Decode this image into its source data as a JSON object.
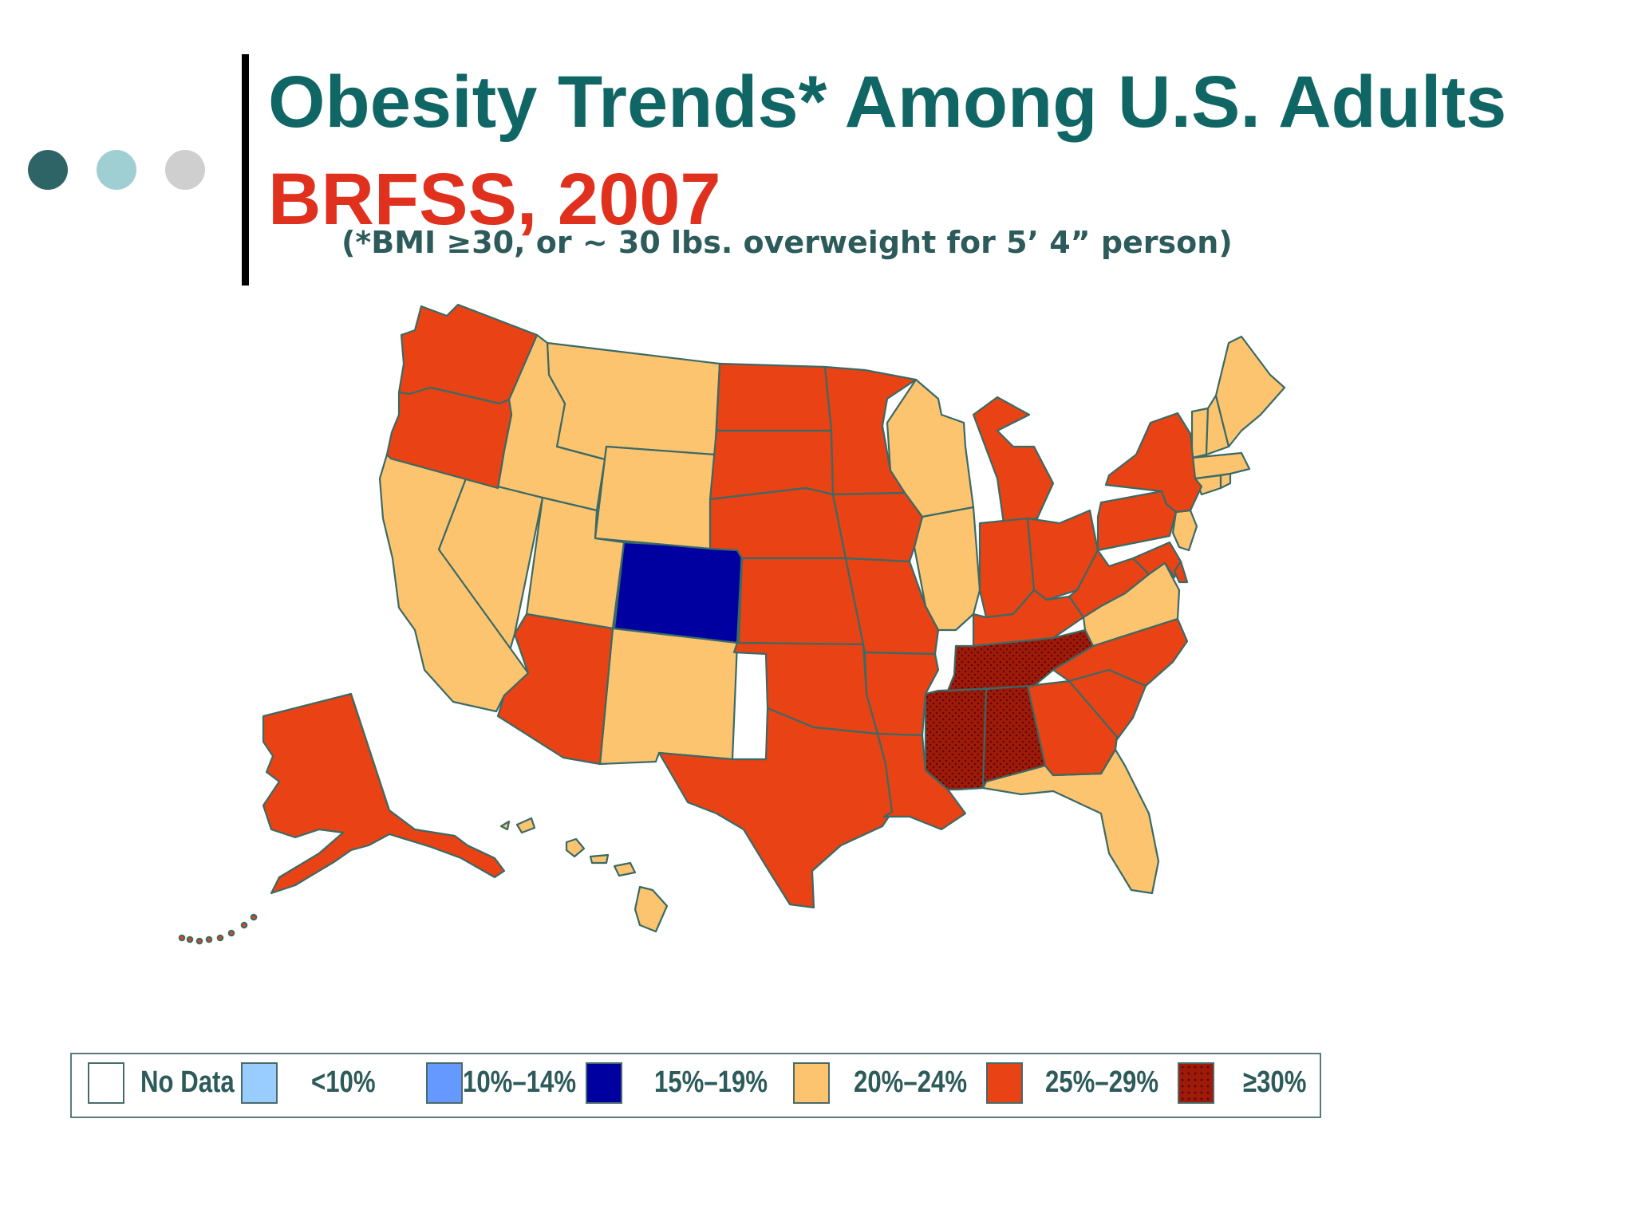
{
  "title": "Obesity Trends* Among U.S. Adults",
  "subtitle": "BRFSS, 2007",
  "footnote": "(*BMI ≥30, or ~ 30 lbs. overweight for 5’ 4” person)",
  "colors": {
    "title": "#0f6664",
    "subtitle": "#e0301e",
    "bullet_dots": [
      "#2f6466",
      "#9fcfd2",
      "#cfcfcf"
    ],
    "no_data": "#ffffff",
    "lt10": "#99ccff",
    "10_14": "#6699ff",
    "15_19": "#0000a0",
    "20_24": "#fdc470",
    "25_29": "#e94214",
    "gte30": "#a01a0a"
  },
  "legend": [
    {
      "label": "No Data",
      "color": "#ffffff"
    },
    {
      "label": "<10%",
      "color": "#99ccff"
    },
    {
      "label": "10%–14%",
      "color": "#6699ff"
    },
    {
      "label": "15%–19%",
      "color": "#0000a0"
    },
    {
      "label": "20%–24%",
      "color": "#fdc470"
    },
    {
      "label": "25%–29%",
      "color": "#e94214"
    },
    {
      "label": "≥30%",
      "color": "#a01a0a",
      "pattern": "dotted"
    }
  ],
  "states": {
    "CO": "15%–19%",
    "MT": "20%–24%",
    "ID": "20%–24%",
    "WY": "20%–24%",
    "NV": "20%–24%",
    "UT": "20%–24%",
    "CA": "20%–24%",
    "NM": "20%–24%",
    "WI": "20%–24%",
    "IL": "20%–24%",
    "VA": "20%–24%",
    "FL": "20%–24%",
    "NJ": "20%–24%",
    "CT": "20%–24%",
    "MA": "20%–24%",
    "VT": "20%–24%",
    "NH": "20%–24%",
    "ME": "20%–24%",
    "RI": "20%–24%",
    "HI": "20%–24%",
    "WA": "25%–29%",
    "OR": "25%–29%",
    "AZ": "25%–29%",
    "ND": "25%–29%",
    "SD": "25%–29%",
    "NE": "25%–29%",
    "KS": "25%–29%",
    "OK": "25%–29%",
    "TX": "25%–29%",
    "MN": "25%–29%",
    "IA": "25%–29%",
    "MO": "25%–29%",
    "AR": "25%–29%",
    "LA": "25%–29%",
    "MI": "25%–29%",
    "IN": "25%–29%",
    "OH": "25%–29%",
    "KY": "25%–29%",
    "WV": "25%–29%",
    "PA": "25%–29%",
    "NY": "25%–29%",
    "MD": "25%–29%",
    "DE": "25%–29%",
    "NC": "25%–29%",
    "SC": "25%–29%",
    "GA": "25%–29%",
    "AK": "25%–29%",
    "MS": "≥30%",
    "AL": "≥30%",
    "TN": "≥30%"
  }
}
